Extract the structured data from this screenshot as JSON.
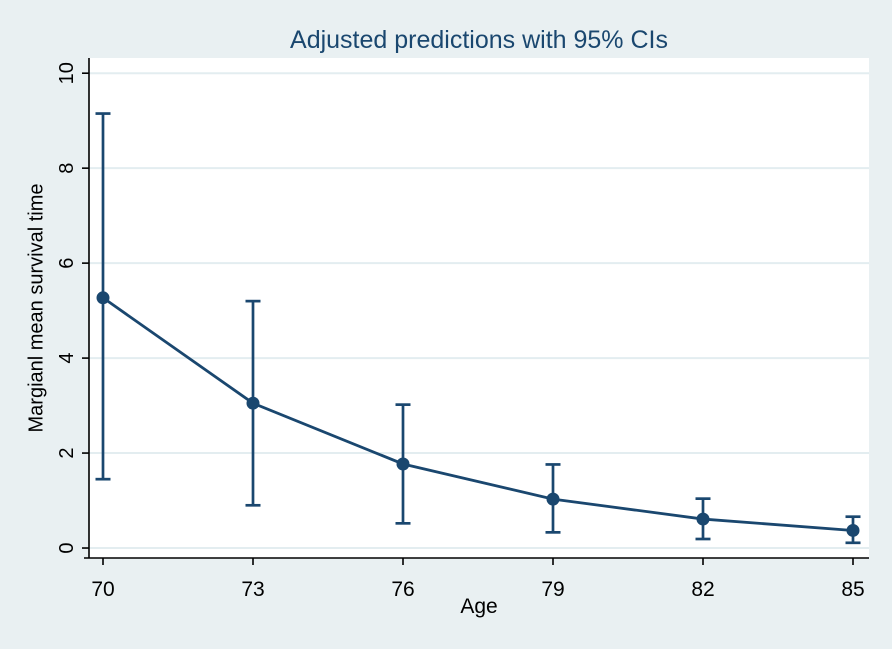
{
  "figure": {
    "background_color": "#e9f0f2",
    "plot_background_color": "#ffffff",
    "accent_color": "#1a476f",
    "title_color": "#1a476f",
    "grid_color": "#e3edf0",
    "axis_color": "#000000",
    "text_color": "#000000"
  },
  "chart_data": {
    "type": "line",
    "title": "Adjusted predictions with 95% CIs",
    "xlabel": "Age",
    "ylabel": "Margianl mean survival time",
    "x": [
      70,
      73,
      76,
      79,
      82,
      85
    ],
    "series": [
      {
        "name": "Adjusted prediction",
        "values": [
          5.27,
          3.05,
          1.77,
          1.03,
          0.61,
          0.37
        ],
        "ci_low": [
          1.45,
          0.9,
          0.52,
          0.33,
          0.19,
          0.11
        ],
        "ci_high": [
          9.15,
          5.2,
          3.02,
          1.76,
          1.04,
          0.66
        ]
      }
    ],
    "xticks": [
      70,
      73,
      76,
      79,
      82,
      85
    ],
    "yticks": [
      0,
      2,
      4,
      6,
      8,
      10
    ],
    "xlim": [
      69.72,
      85.32
    ],
    "ylim": [
      -0.21,
      10.32
    ],
    "grid": "horizontal",
    "legend": "none",
    "marker": "filled-circle",
    "error_bars": "95% CI vertical bars with caps",
    "y_tick_label_rotation": 90
  }
}
